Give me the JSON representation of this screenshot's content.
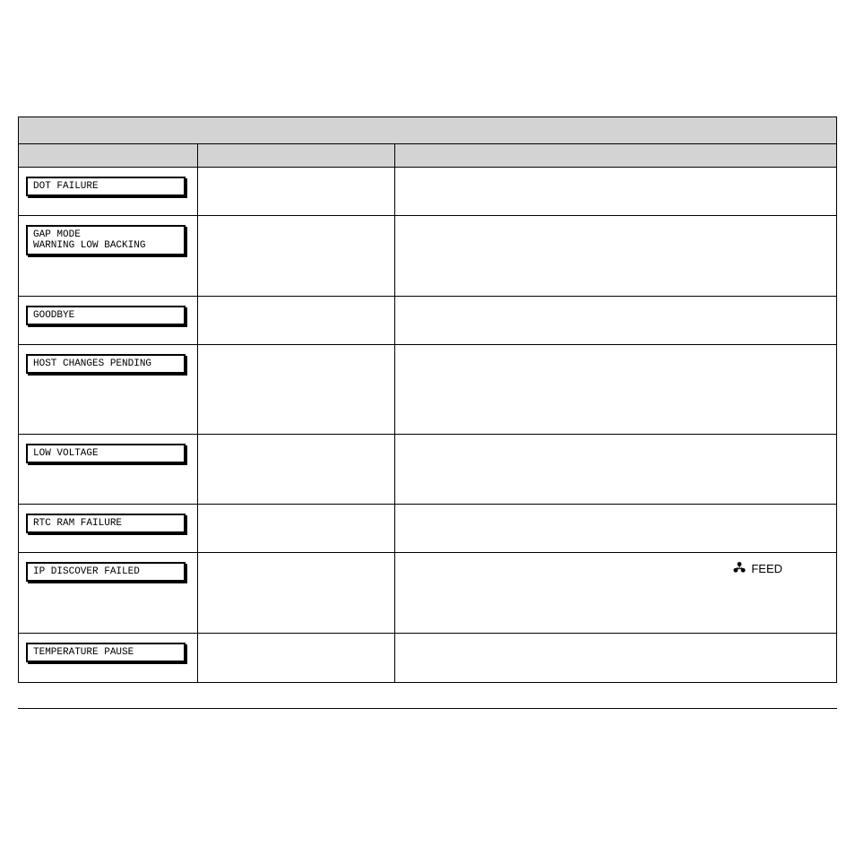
{
  "rows": [
    {
      "lines": [
        "DOT FAILURE"
      ],
      "height": "h-small",
      "feed": false
    },
    {
      "lines": [
        "GAP MODE",
        "WARNING LOW BACKING"
      ],
      "height": "h-med",
      "feed": false
    },
    {
      "lines": [
        "GOODBYE"
      ],
      "height": "h-small",
      "feed": false
    },
    {
      "lines": [
        "HOST CHANGES PENDING"
      ],
      "height": "h-large",
      "feed": false
    },
    {
      "lines": [
        "LOW VOLTAGE"
      ],
      "height": "h-med2",
      "feed": false
    },
    {
      "lines": [
        "RTC RAM FAILURE"
      ],
      "height": "h-small",
      "feed": false
    },
    {
      "lines": [
        "IP DISCOVER FAILED"
      ],
      "height": "h-med",
      "feed": true
    },
    {
      "lines": [
        "TEMPERATURE PAUSE"
      ],
      "height": "h-small",
      "feed": false
    }
  ],
  "feed_label": "FEED",
  "colors": {
    "header_bg": "#d3d3d3",
    "border": "#000000",
    "page_bg": "#ffffff"
  }
}
